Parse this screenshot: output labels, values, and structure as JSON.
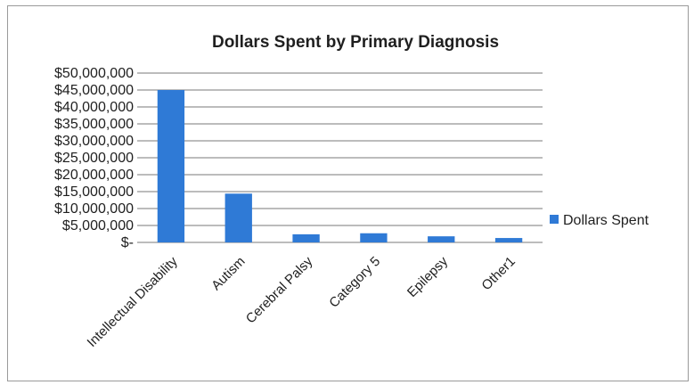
{
  "chart_data": {
    "type": "bar",
    "title": "Dollars Spent by Primary Diagnosis",
    "categories": [
      "Intellectual Disability",
      "Autism",
      "Cerebral Palsy",
      "Category 5",
      "Epilepsy",
      "Other1"
    ],
    "series": [
      {
        "name": "Dollars Spent",
        "values": [
          45000000,
          14400000,
          2400000,
          2700000,
          1800000,
          1300000
        ],
        "color": "#2f7ad6"
      }
    ],
    "ylim": [
      0,
      50000000
    ],
    "yticks": [
      0,
      5000000,
      10000000,
      15000000,
      20000000,
      25000000,
      30000000,
      35000000,
      40000000,
      45000000,
      50000000
    ],
    "ytick_labels": [
      "$-",
      "$5,000,000",
      "$10,000,000",
      "$15,000,000",
      "$20,000,000",
      "$25,000,000",
      "$30,000,000",
      "$35,000,000",
      "$40,000,000",
      "$45,000,000",
      "$50,000,000"
    ],
    "grid": true,
    "legend_position": "right",
    "xlabel": "",
    "ylabel": ""
  }
}
